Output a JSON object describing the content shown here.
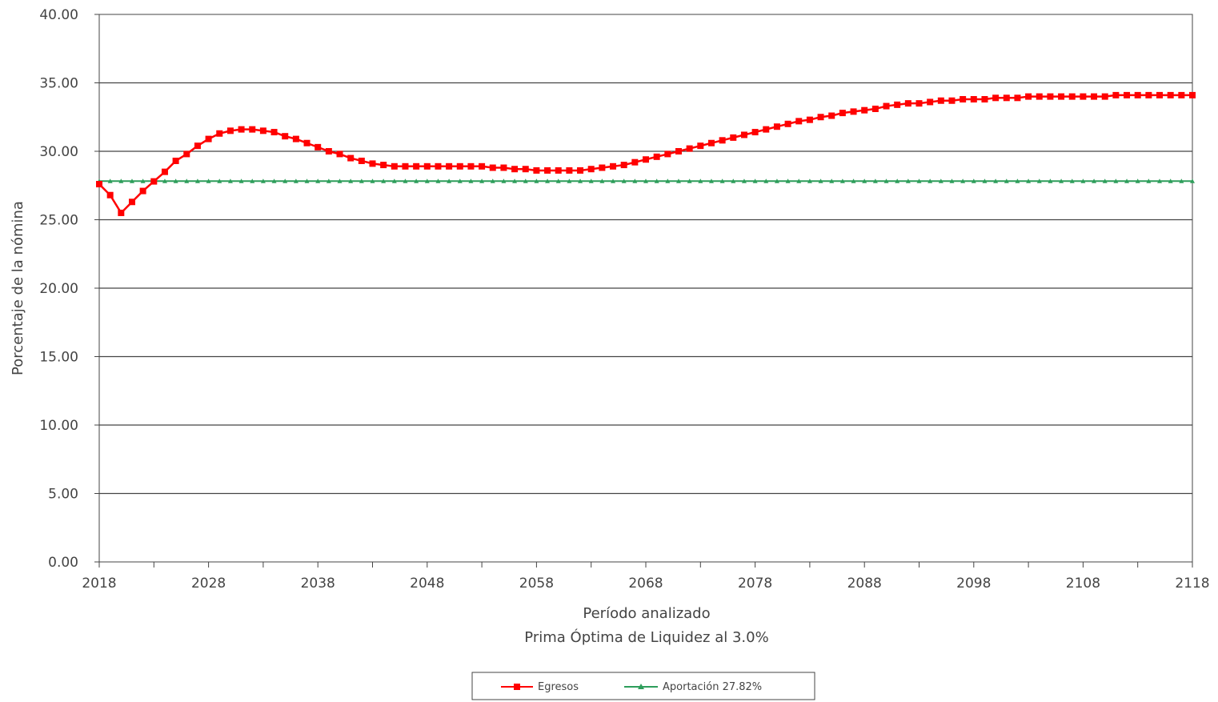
{
  "chart_data": {
    "type": "line",
    "xlabel": "Período analizado",
    "subtitle": "Prima Óptima de Liquidez al 3.0%",
    "ylabel": "Porcentaje de la nómina",
    "xlim": [
      2018,
      2118
    ],
    "ylim": [
      0,
      40
    ],
    "x_ticks": [
      "2018",
      "2028",
      "2038",
      "2048",
      "2058",
      "2068",
      "2078",
      "2088",
      "2098",
      "2108",
      "2118"
    ],
    "y_ticks": [
      "0.00",
      "5.00",
      "10.00",
      "15.00",
      "20.00",
      "25.00",
      "30.00",
      "35.00",
      "40.00"
    ],
    "grid": "horizontal",
    "legend_position": "bottom",
    "series": [
      {
        "name": "Egresos",
        "color": "#ff0000",
        "marker": "square",
        "x": [
          2018,
          2019,
          2020,
          2021,
          2022,
          2023,
          2024,
          2025,
          2026,
          2027,
          2028,
          2029,
          2030,
          2031,
          2032,
          2033,
          2034,
          2035,
          2036,
          2037,
          2038,
          2039,
          2040,
          2041,
          2042,
          2043,
          2044,
          2045,
          2046,
          2047,
          2048,
          2049,
          2050,
          2051,
          2052,
          2053,
          2054,
          2055,
          2056,
          2057,
          2058,
          2059,
          2060,
          2061,
          2062,
          2063,
          2064,
          2065,
          2066,
          2067,
          2068,
          2069,
          2070,
          2071,
          2072,
          2073,
          2074,
          2075,
          2076,
          2077,
          2078,
          2079,
          2080,
          2081,
          2082,
          2083,
          2084,
          2085,
          2086,
          2087,
          2088,
          2089,
          2090,
          2091,
          2092,
          2093,
          2094,
          2095,
          2096,
          2097,
          2098,
          2099,
          2100,
          2101,
          2102,
          2103,
          2104,
          2105,
          2106,
          2107,
          2108,
          2109,
          2110,
          2111,
          2112,
          2113,
          2114,
          2115,
          2116,
          2117,
          2118
        ],
        "values": [
          27.6,
          26.8,
          25.5,
          26.3,
          27.1,
          27.8,
          28.5,
          29.3,
          29.8,
          30.4,
          30.9,
          31.3,
          31.5,
          31.6,
          31.6,
          31.5,
          31.4,
          31.1,
          30.9,
          30.6,
          30.3,
          30.0,
          29.8,
          29.5,
          29.3,
          29.1,
          29.0,
          28.9,
          28.9,
          28.9,
          28.9,
          28.9,
          28.9,
          28.9,
          28.9,
          28.9,
          28.8,
          28.8,
          28.7,
          28.7,
          28.6,
          28.6,
          28.6,
          28.6,
          28.6,
          28.7,
          28.8,
          28.9,
          29.0,
          29.2,
          29.4,
          29.6,
          29.8,
          30.0,
          30.2,
          30.4,
          30.6,
          30.8,
          31.0,
          31.2,
          31.4,
          31.6,
          31.8,
          32.0,
          32.2,
          32.3,
          32.5,
          32.6,
          32.8,
          32.9,
          33.0,
          33.1,
          33.3,
          33.4,
          33.5,
          33.5,
          33.6,
          33.7,
          33.7,
          33.8,
          33.8,
          33.8,
          33.9,
          33.9,
          33.9,
          34.0,
          34.0,
          34.0,
          34.0,
          34.0,
          34.0,
          34.0,
          34.0,
          34.1,
          34.1,
          34.1,
          34.1,
          34.1,
          34.1,
          34.1,
          34.1
        ]
      },
      {
        "name": "Aportación 27.82%",
        "color": "#2e9e5b",
        "marker": "triangle",
        "constant": 27.82
      }
    ]
  }
}
